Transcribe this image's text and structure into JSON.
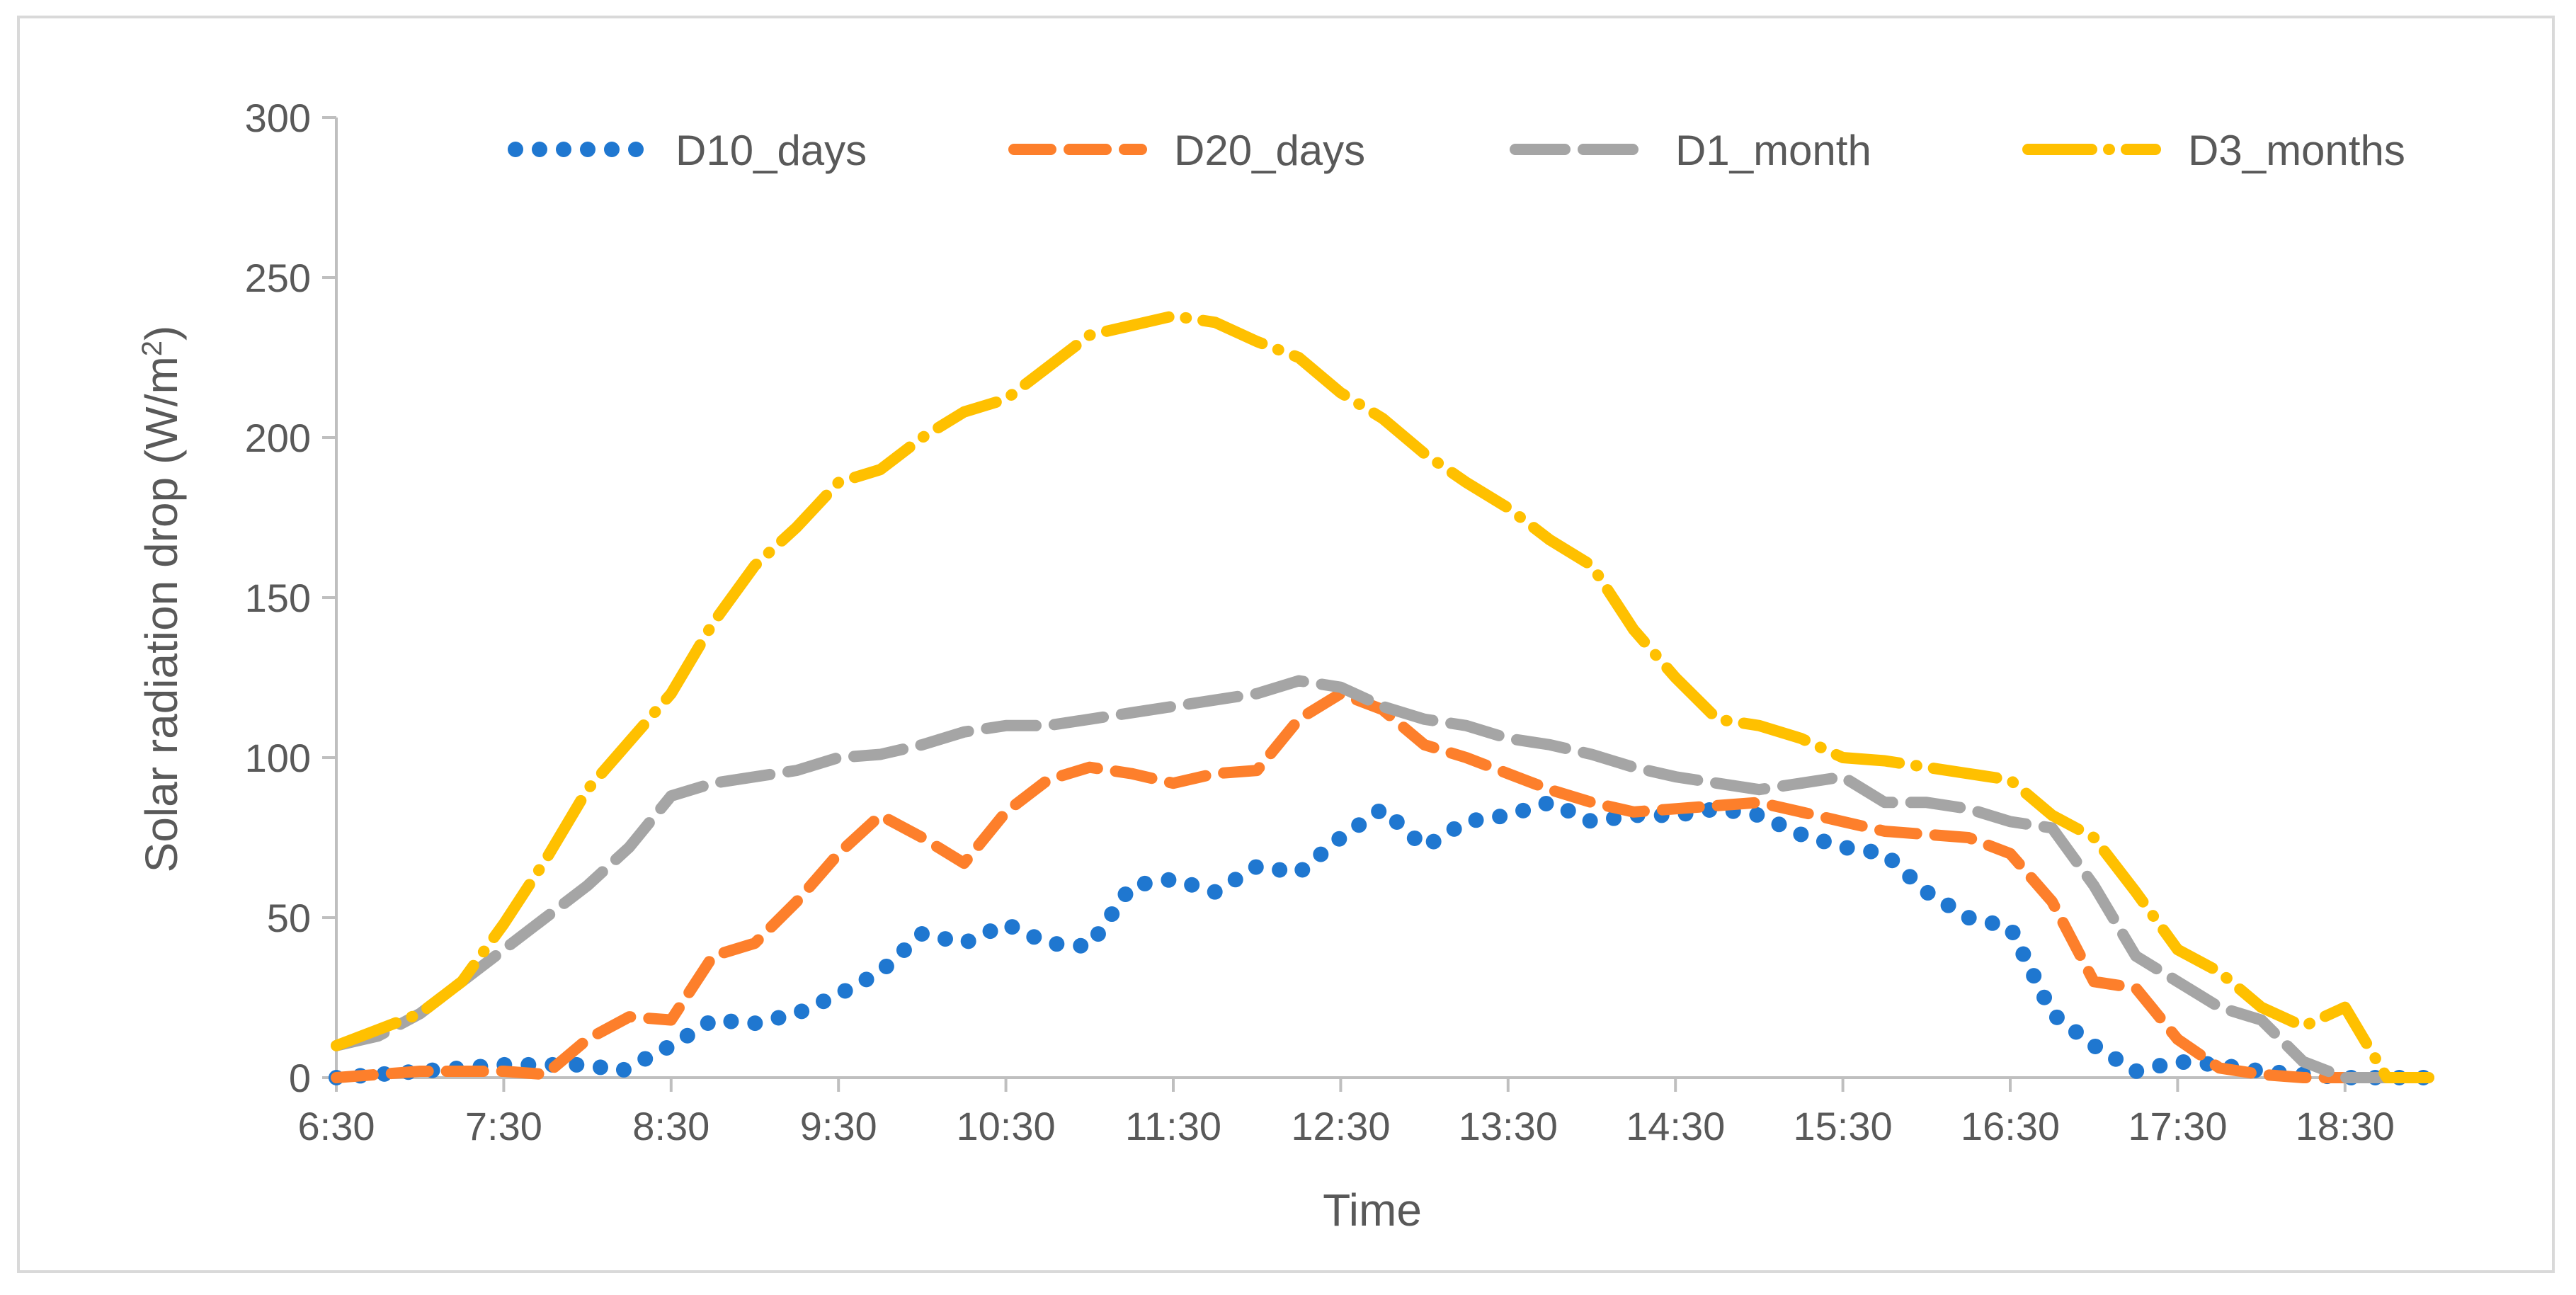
{
  "chart_data": {
    "type": "line",
    "title": "",
    "xlabel": "Time",
    "ylabel": "Solar radiation drop (W/m²)",
    "ylabel_main": "Solar radiation drop (W/m",
    "ylabel_sup": "2",
    "ylabel_end": ")",
    "ylim": [
      0,
      300
    ],
    "yticks": [
      "0",
      "50",
      "100",
      "150",
      "200",
      "250",
      "300"
    ],
    "xlim": [
      6.5,
      19.0
    ],
    "xtick_values": [
      6.5,
      7.5,
      8.5,
      9.5,
      10.5,
      11.5,
      12.5,
      13.5,
      14.5,
      15.5,
      16.5,
      17.5,
      18.5
    ],
    "xticks": [
      "6:30",
      "7:30",
      "8:30",
      "9:30",
      "10:30",
      "11:30",
      "12:30",
      "13:30",
      "14:30",
      "15:30",
      "16:30",
      "17:30",
      "18:30"
    ],
    "grid": false,
    "legend_position": "top",
    "series": [
      {
        "name": "D10_days",
        "color": "#1f77d0",
        "style": "dotted",
        "x": [
          6.5,
          7.0,
          7.5,
          8.0,
          8.2,
          8.5,
          8.75,
          9.0,
          9.25,
          9.5,
          9.75,
          10.0,
          10.25,
          10.5,
          10.75,
          11.0,
          11.25,
          11.5,
          11.75,
          12.0,
          12.25,
          12.5,
          12.75,
          13.0,
          13.25,
          13.5,
          13.75,
          14.0,
          14.25,
          14.5,
          14.75,
          15.0,
          15.25,
          15.5,
          15.75,
          16.0,
          16.25,
          16.5,
          16.75,
          17.0,
          17.25,
          17.5,
          17.75,
          18.0,
          18.25,
          18.5,
          18.75,
          19.0
        ],
        "values": [
          0,
          2,
          4,
          4,
          2,
          10,
          18,
          17,
          20,
          26,
          33,
          45,
          42,
          48,
          42,
          41,
          60,
          62,
          58,
          66,
          64,
          75,
          84,
          72,
          80,
          82,
          86,
          80,
          82,
          82,
          84,
          82,
          76,
          72,
          70,
          58,
          50,
          47,
          20,
          10,
          2,
          5,
          4,
          2,
          1,
          0,
          0,
          0
        ]
      },
      {
        "name": "D20_days",
        "color": "#fd7f2b",
        "style": "dashed",
        "x": [
          6.5,
          7.0,
          7.5,
          7.75,
          8.0,
          8.25,
          8.5,
          8.75,
          9.0,
          9.25,
          9.5,
          9.75,
          10.0,
          10.25,
          10.5,
          10.75,
          11.0,
          11.25,
          11.5,
          11.75,
          12.0,
          12.25,
          12.5,
          12.75,
          13.0,
          13.25,
          13.5,
          13.75,
          14.0,
          14.25,
          14.5,
          14.75,
          15.0,
          15.25,
          15.5,
          15.75,
          16.0,
          16.25,
          16.5,
          16.75,
          17.0,
          17.25,
          17.5,
          17.75,
          18.0,
          18.25,
          18.5,
          18.75,
          19.0
        ],
        "values": [
          0,
          2,
          2,
          1,
          12,
          19,
          18,
          38,
          42,
          55,
          70,
          82,
          75,
          67,
          83,
          93,
          97,
          95,
          92,
          95,
          96,
          112,
          120,
          115,
          104,
          100,
          95,
          90,
          86,
          83,
          84,
          85,
          86,
          83,
          80,
          77,
          76,
          75,
          70,
          55,
          30,
          28,
          12,
          3,
          1,
          0,
          0,
          0,
          0
        ]
      },
      {
        "name": "D1_month",
        "color": "#a5a5a5",
        "style": "long-dashed",
        "x": [
          6.5,
          6.75,
          7.0,
          7.25,
          7.5,
          7.75,
          8.0,
          8.25,
          8.5,
          8.75,
          9.0,
          9.25,
          9.5,
          9.75,
          10.0,
          10.25,
          10.5,
          10.75,
          11.0,
          11.25,
          11.5,
          11.75,
          12.0,
          12.25,
          12.5,
          12.75,
          13.0,
          13.25,
          13.5,
          13.75,
          14.0,
          14.25,
          14.5,
          14.75,
          15.0,
          15.25,
          15.5,
          15.75,
          16.0,
          16.25,
          16.5,
          16.75,
          17.0,
          17.25,
          17.5,
          17.75,
          18.0,
          18.25,
          18.5,
          18.75,
          19.0
        ],
        "values": [
          10,
          13,
          20,
          30,
          40,
          50,
          60,
          72,
          88,
          92,
          94,
          96,
          100,
          101,
          104,
          108,
          110,
          110,
          112,
          114,
          116,
          118,
          120,
          124,
          122,
          116,
          112,
          110,
          106,
          104,
          101,
          97,
          94,
          92,
          90,
          92,
          94,
          86,
          86,
          84,
          80,
          78,
          60,
          38,
          30,
          22,
          18,
          5,
          0,
          0,
          0
        ]
      },
      {
        "name": "D3_months",
        "color": "#ffc000",
        "style": "dash-dot",
        "x": [
          6.5,
          6.75,
          7.0,
          7.25,
          7.5,
          7.75,
          8.0,
          8.25,
          8.5,
          8.75,
          9.0,
          9.25,
          9.5,
          9.75,
          10.0,
          10.25,
          10.5,
          10.75,
          11.0,
          11.25,
          11.5,
          11.75,
          12.0,
          12.25,
          12.5,
          12.75,
          13.0,
          13.25,
          13.5,
          13.75,
          14.0,
          14.25,
          14.5,
          14.75,
          15.0,
          15.25,
          15.5,
          15.75,
          16.0,
          16.25,
          16.5,
          16.75,
          17.0,
          17.25,
          17.5,
          17.75,
          18.0,
          18.25,
          18.5,
          18.75,
          19.0
        ],
        "values": [
          10,
          15,
          20,
          30,
          48,
          68,
          90,
          105,
          120,
          142,
          160,
          172,
          186,
          190,
          200,
          208,
          212,
          222,
          232,
          235,
          238,
          236,
          230,
          225,
          214,
          206,
          195,
          186,
          178,
          168,
          160,
          140,
          125,
          112,
          110,
          106,
          100,
          99,
          97,
          95,
          93,
          82,
          75,
          58,
          40,
          33,
          22,
          16,
          22,
          0,
          0
        ]
      }
    ]
  }
}
